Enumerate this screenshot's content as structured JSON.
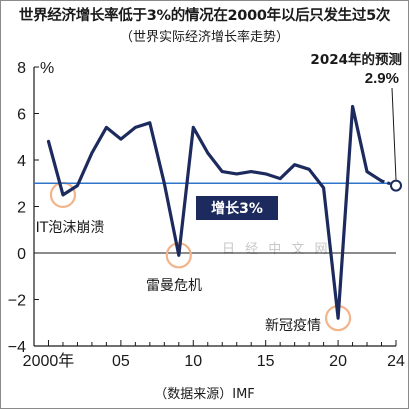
{
  "title": "世界经济增长率低于3%的情况在2000年以后只发生过5次",
  "subtitle": "（世界实际经济增长率走势）",
  "source": "（数据来源）IMF",
  "watermark": "日 经 中 文 网",
  "colors": {
    "line": "#1c2a5e",
    "reference_line": "#2e74c8",
    "reference_box": "#1c2a5e",
    "highlight_circle": "#f2b48a"
  },
  "chart_data": {
    "type": "line",
    "title": "世界经济增长率低于3%的情况在2000年以后只发生过5次",
    "subtitle": "（世界实际经济增长率走势）",
    "xlabel": "",
    "ylabel": "%",
    "x_tick_labels": [
      "2000年",
      "05",
      "10",
      "15",
      "20",
      "24"
    ],
    "x_ticks": [
      2000,
      2005,
      2010,
      2015,
      2020,
      2024
    ],
    "y_ticks": [
      -4,
      -2,
      0,
      2,
      4,
      6,
      8
    ],
    "xlim": [
      1999,
      2024
    ],
    "ylim": [
      -4,
      8
    ],
    "series": [
      {
        "x": [
          2000,
          2001,
          2002,
          2003,
          2004,
          2005,
          2006,
          2007,
          2008,
          2009,
          2010,
          2011,
          2012,
          2013,
          2014,
          2015,
          2016,
          2017,
          2018,
          2019,
          2020,
          2021,
          2022,
          2023
        ],
        "values": [
          4.8,
          2.5,
          2.9,
          4.3,
          5.4,
          4.9,
          5.4,
          5.6,
          3.0,
          -0.1,
          5.4,
          4.3,
          3.5,
          3.4,
          3.5,
          3.4,
          3.2,
          3.8,
          3.6,
          2.8,
          -2.8,
          6.3,
          3.5,
          3.1
        ]
      }
    ],
    "forecast": {
      "x": [
        2023,
        2024
      ],
      "values": [
        3.1,
        2.9
      ],
      "label": "2024年的预测",
      "value_label": "2.9%"
    },
    "reference_line": {
      "value": 3.0,
      "label": "增长3%"
    },
    "annotations": [
      {
        "text": "IT泡沫崩溃",
        "x": 2001,
        "y": 2.5
      },
      {
        "text": "雷曼危机",
        "x": 2009,
        "y": -0.1
      },
      {
        "text": "新冠疫情",
        "x": 2020,
        "y": -2.8
      }
    ],
    "grid": false
  }
}
